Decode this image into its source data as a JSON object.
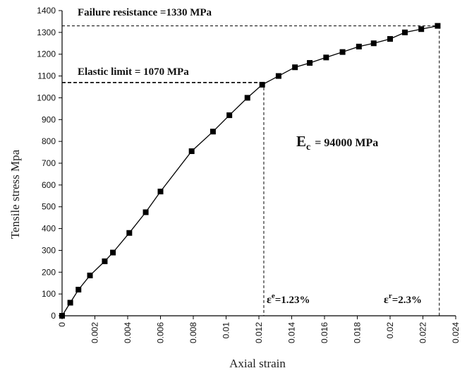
{
  "chart_data": {
    "type": "line",
    "title": "",
    "xlabel": "Axial strain",
    "ylabel": "Tensile stress Mpa",
    "xlim": [
      0,
      0.024
    ],
    "ylim": [
      0,
      1400
    ],
    "grid": false,
    "x_ticks": [
      "0",
      "0.002",
      "0.004",
      "0.006",
      "0.008",
      "0.01",
      "0.012",
      "0.014",
      "0.016",
      "0.018",
      "0.02",
      "0.022",
      "0.024"
    ],
    "y_ticks": [
      "0",
      "100",
      "200",
      "300",
      "400",
      "500",
      "600",
      "700",
      "800",
      "900",
      "1000",
      "1100",
      "1200",
      "1300",
      "1400"
    ],
    "series": [
      {
        "marker": "square",
        "color": "#000000",
        "x": [
          0,
          0.0005,
          0.001,
          0.0017,
          0.0026,
          0.0031,
          0.0041,
          0.0051,
          0.006,
          0.0079,
          0.0092,
          0.0102,
          0.0113,
          0.0122,
          0.0132,
          0.0142,
          0.0151,
          0.0161,
          0.0171,
          0.0181,
          0.019,
          0.02,
          0.0209,
          0.0219,
          0.0229
        ],
        "y": [
          0,
          60,
          120,
          185,
          250,
          290,
          380,
          475,
          570,
          755,
          845,
          920,
          1000,
          1060,
          1100,
          1140,
          1160,
          1185,
          1210,
          1235,
          1250,
          1270,
          1300,
          1315,
          1330
        ]
      }
    ],
    "reference_lines": {
      "failure": {
        "strain": 0.023,
        "stress": 1330
      },
      "elastic": {
        "strain": 0.0123,
        "stress": 1070
      }
    },
    "annotations": {
      "failure_resistance": "Failure resistance =1330 MPa",
      "elastic_limit": "Elastic limit = 1070 MPa",
      "modulus_symbol": "E",
      "modulus_subscript": "c",
      "modulus_value": "= 94000 MPa",
      "elastic_strain_symbol": "ε",
      "elastic_strain_sup": "e",
      "elastic_strain_value": "=1.23%",
      "failure_strain_symbol": "ε",
      "failure_strain_sup": "r",
      "failure_strain_value": "=2.3%"
    }
  }
}
